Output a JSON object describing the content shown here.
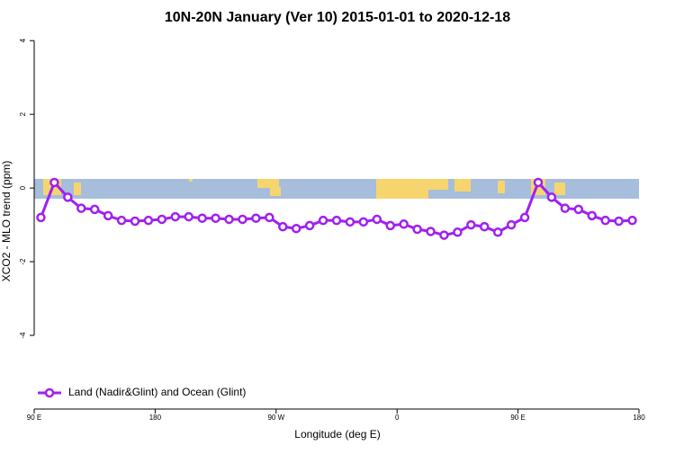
{
  "chart_data": {
    "type": "line",
    "title": "10N-20N January (Ver 10)   2015-01-01 to 2020-12-18",
    "x_label": "Longitude (deg E)",
    "y_label": "XCO2 - MLO trend (ppm)",
    "x": [
      95,
      105,
      115,
      125,
      135,
      145,
      155,
      165,
      175,
      185,
      195,
      205,
      215,
      225,
      235,
      245,
      255,
      265,
      275,
      285,
      295,
      305,
      315,
      325,
      335,
      345,
      355,
      365,
      375,
      385,
      395,
      405,
      415,
      425,
      435,
      445,
      455,
      465,
      475,
      485,
      495,
      505,
      515,
      525,
      535
    ],
    "series": [
      {
        "name": "Land (Nadir&Glint) and Ocean (Glint)",
        "color": "#a020f0",
        "values": [
          -0.8,
          0.15,
          -0.25,
          -0.55,
          -0.58,
          -0.75,
          -0.88,
          -0.9,
          -0.88,
          -0.85,
          -0.78,
          -0.78,
          -0.82,
          -0.82,
          -0.85,
          -0.85,
          -0.82,
          -0.8,
          -1.05,
          -1.1,
          -1.02,
          -0.88,
          -0.88,
          -0.92,
          -0.92,
          -0.85,
          -1.02,
          -0.98,
          -1.12,
          -1.18,
          -1.28,
          -1.2,
          -1.0,
          -1.05,
          -1.2,
          -1.0,
          -0.8,
          0.15,
          -0.25,
          -0.55,
          -0.58,
          -0.75,
          -0.88,
          -0.9,
          -0.88
        ]
      }
    ],
    "xlim": [
      90,
      540
    ],
    "xticks": [
      {
        "value": 90,
        "label": "90 E"
      },
      {
        "value": 180,
        "label": "180"
      },
      {
        "value": 270,
        "label": "90 W"
      },
      {
        "value": 360,
        "label": "0"
      },
      {
        "value": 450,
        "label": "90 E"
      },
      {
        "value": 540,
        "label": "180"
      }
    ],
    "ylim": [
      -6,
      4.2
    ],
    "yticks": [
      -4,
      -2,
      0,
      2,
      4
    ],
    "legend": "bottom-left"
  }
}
